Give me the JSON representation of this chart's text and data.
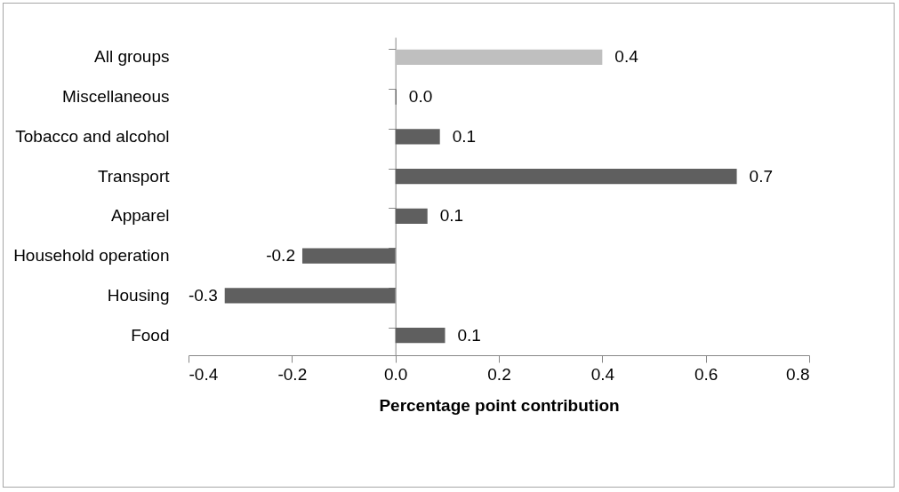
{
  "chart_data": {
    "type": "bar",
    "orientation": "horizontal",
    "xlabel": "Percentage point contribution",
    "categories": [
      "All groups",
      "Miscellaneous",
      "Tobacco and alcohol",
      "Transport",
      "Apparel",
      "Household operation",
      "Housing",
      "Food"
    ],
    "values": [
      0.4,
      0.002,
      0.086,
      0.66,
      0.062,
      -0.18,
      -0.33,
      0.096
    ],
    "colors": [
      "#bfbfbf",
      "#5f5f5f",
      "#5f5f5f",
      "#5f5f5f",
      "#5f5f5f",
      "#5f5f5f",
      "#5f5f5f",
      "#5f5f5f"
    ],
    "value_labels": [
      "0.4",
      "0.0",
      "0.1",
      "0.7",
      "0.1",
      "-0.2",
      "-0.3",
      "0.1"
    ],
    "xlim": [
      -0.4,
      0.8
    ],
    "xticks": [
      -0.4,
      -0.2,
      {
        "value": 0,
        "label": "0.0"
      },
      0.2,
      0.4,
      0.6,
      0.8
    ]
  }
}
